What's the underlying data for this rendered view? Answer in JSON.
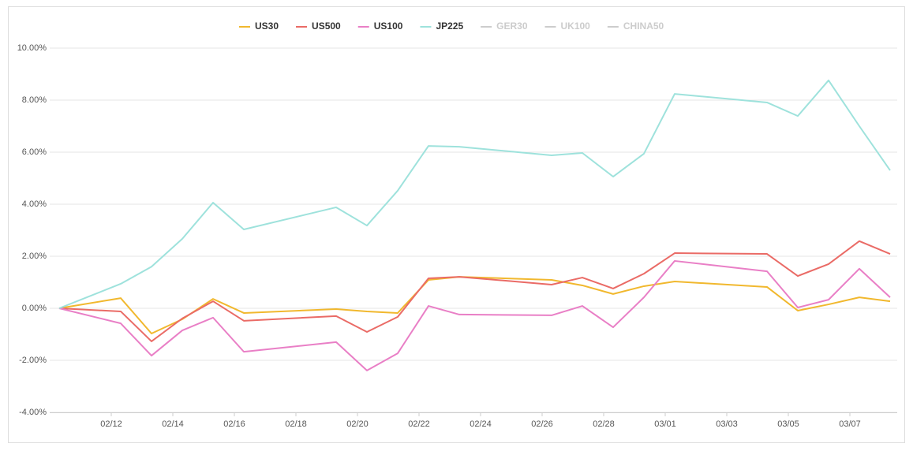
{
  "chart_data": {
    "type": "line",
    "x": [
      "02/10",
      "02/12",
      "02/13",
      "02/14",
      "02/15",
      "02/16",
      "02/19",
      "02/20",
      "02/21",
      "02/22",
      "02/23",
      "02/26",
      "02/27",
      "02/28",
      "02/29",
      "03/01",
      "03/04",
      "03/05",
      "03/06",
      "03/07",
      "03/08"
    ],
    "xticks": [
      "02/12",
      "02/14",
      "02/16",
      "02/18",
      "02/20",
      "02/22",
      "02/24",
      "02/26",
      "02/28",
      "03/01",
      "03/03",
      "03/05",
      "03/07"
    ],
    "ylim": [
      -4,
      10
    ],
    "yticks": [
      {
        "value": -4,
        "label": "-4.00%"
      },
      {
        "value": -2,
        "label": "-2.00%"
      },
      {
        "value": 0,
        "label": "0.00%"
      },
      {
        "value": 2,
        "label": "2.00%"
      },
      {
        "value": 4,
        "label": "4.00%"
      },
      {
        "value": 6,
        "label": "6.00%"
      },
      {
        "value": 8,
        "label": "8.00%"
      },
      {
        "value": 10,
        "label": "10.00%"
      }
    ],
    "grid": true,
    "series": [
      {
        "name": "US30",
        "color": "#f1b82e",
        "values": [
          0,
          0.39,
          -0.97,
          -0.42,
          0.36,
          -0.18,
          -0.03,
          -0.12,
          -0.18,
          1.09,
          1.21,
          1.09,
          0.88,
          0.55,
          0.85,
          1.03,
          0.82,
          -0.09,
          0.15,
          0.42,
          0.27
        ]
      },
      {
        "name": "US500",
        "color": "#ea6b66",
        "values": [
          0,
          -0.12,
          -1.27,
          -0.39,
          0.27,
          -0.48,
          -0.3,
          -0.91,
          -0.33,
          1.15,
          1.21,
          0.91,
          1.18,
          0.76,
          1.33,
          2.12,
          2.09,
          1.24,
          1.7,
          2.58,
          2.09
        ]
      },
      {
        "name": "US100",
        "color": "#e97fc6",
        "values": [
          0,
          -0.58,
          -1.82,
          -0.85,
          -0.36,
          -1.67,
          -1.3,
          -2.39,
          -1.73,
          0.09,
          -0.24,
          -0.27,
          0.09,
          -0.73,
          0.42,
          1.82,
          1.42,
          0.03,
          0.33,
          1.52,
          0.42
        ]
      },
      {
        "name": "JP225",
        "color": "#9ee2dc",
        "values": [
          0,
          0.94,
          1.6,
          2.67,
          4.06,
          3.03,
          3.88,
          3.18,
          4.52,
          6.24,
          6.21,
          5.88,
          5.97,
          5.06,
          5.94,
          8.24,
          7.91,
          7.39,
          8.76,
          7.0,
          5.3
        ]
      }
    ],
    "legend_hidden": [
      "GER30",
      "UK100",
      "CHINA50"
    ],
    "hidden_color": "#cccccc"
  }
}
